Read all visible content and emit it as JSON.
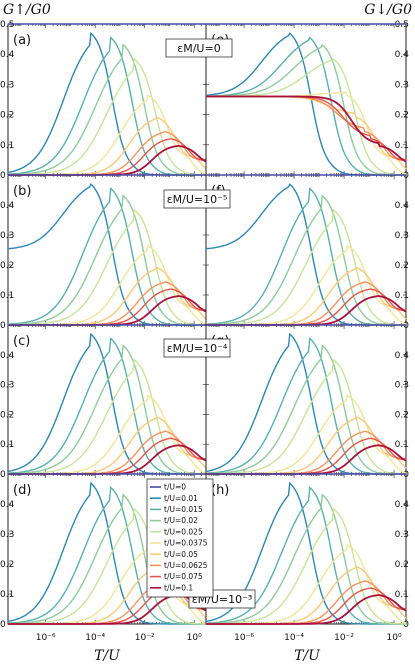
{
  "chart_data": {
    "type": "line",
    "xscale": "log",
    "xlim": [
      3e-08,
      3
    ],
    "ylim": [
      0,
      0.5
    ],
    "xlabel": "T/U",
    "ylabel_left": "G↑/G0",
    "ylabel_right": "G↓/G0",
    "x_ticks": [
      "10⁻⁶",
      "10⁻⁴",
      "10⁻²",
      "10⁰"
    ],
    "y_ticks": [
      "0",
      "0.1",
      "0.2",
      "0.3",
      "0.4",
      "0.5"
    ],
    "y_ticks_small": [
      "0",
      "0.1",
      "0.2",
      "0.3",
      "0.4"
    ],
    "legend": {
      "position": "center",
      "entries": [
        "t/U=0",
        "t/U=0.01",
        "t/U=0.015",
        "t/U=0.02",
        "t/U=0.025",
        "t/U=0.0375",
        "t/U=0.05",
        "t/U=0.0625",
        "t/U=0.075",
        "t/U=0.1"
      ]
    },
    "series_colors": [
      "#4a4aa6",
      "#2f86b4",
      "#5ab0a9",
      "#8fcb9b",
      "#c7e49c",
      "#efe69a",
      "#fbc97c",
      "#f7925f",
      "#e45748",
      "#a9113e"
    ],
    "t_over_U": [
      0,
      0.01,
      0.015,
      0.02,
      0.025,
      0.0375,
      0.05,
      0.0625,
      0.075,
      0.1
    ],
    "peak_log10T": [
      -10,
      -4.2,
      -3.4,
      -2.9,
      -2.45,
      -1.9,
      -1.55,
      -1.2,
      -0.95,
      -0.6
    ],
    "peak_height": [
      0.5,
      0.49,
      0.475,
      0.45,
      0.4,
      0.275,
      0.2,
      0.15,
      0.125,
      0.1
    ],
    "rise_width": [
      1,
      0.55,
      0.58,
      0.6,
      0.58,
      0.5,
      0.42,
      0.38,
      0.35,
      0.32
    ],
    "panels": [
      {
        "label": "(a)",
        "spin": "up",
        "eps_index": 0,
        "low_T": [
          0.5,
          0,
          0,
          0,
          0,
          0,
          0,
          0,
          0,
          0
        ]
      },
      {
        "label": "(b)",
        "spin": "up",
        "eps_index": 1,
        "low_T": [
          0.5,
          0.25,
          0,
          0,
          0,
          0,
          0,
          0,
          0,
          0
        ]
      },
      {
        "label": "(c)",
        "spin": "up",
        "eps_index": 2,
        "low_T": [
          0.5,
          0,
          0,
          0,
          0,
          0,
          0,
          0,
          0,
          0
        ]
      },
      {
        "label": "(d)",
        "spin": "up",
        "eps_index": 3,
        "low_T": [
          0.5,
          0,
          0,
          0,
          0,
          0,
          0,
          0,
          0,
          0
        ]
      },
      {
        "label": "(e)",
        "spin": "down",
        "eps_index": 0,
        "low_T": [
          0.5,
          0.26,
          0.26,
          0.26,
          0.26,
          0.26,
          0.26,
          0.26,
          0.26,
          0.26
        ]
      },
      {
        "label": "(f)",
        "spin": "down",
        "eps_index": 1,
        "low_T": [
          0.5,
          0.25,
          0,
          0,
          0,
          0,
          0,
          0,
          0,
          0
        ]
      },
      {
        "label": "(g)",
        "spin": "down",
        "eps_index": 2,
        "low_T": [
          0.5,
          0,
          0,
          0,
          0,
          0,
          0,
          0,
          0,
          0
        ]
      },
      {
        "label": "(h)",
        "spin": "down",
        "eps_index": 3,
        "low_T": [
          0.5,
          0,
          0,
          0,
          0,
          0,
          0,
          0,
          0,
          0
        ]
      }
    ],
    "eps_labels": [
      "εM/U=0",
      "εM/U=10⁻⁵",
      "εM/U=10⁻⁴",
      "εM/U=10⁻³"
    ]
  }
}
